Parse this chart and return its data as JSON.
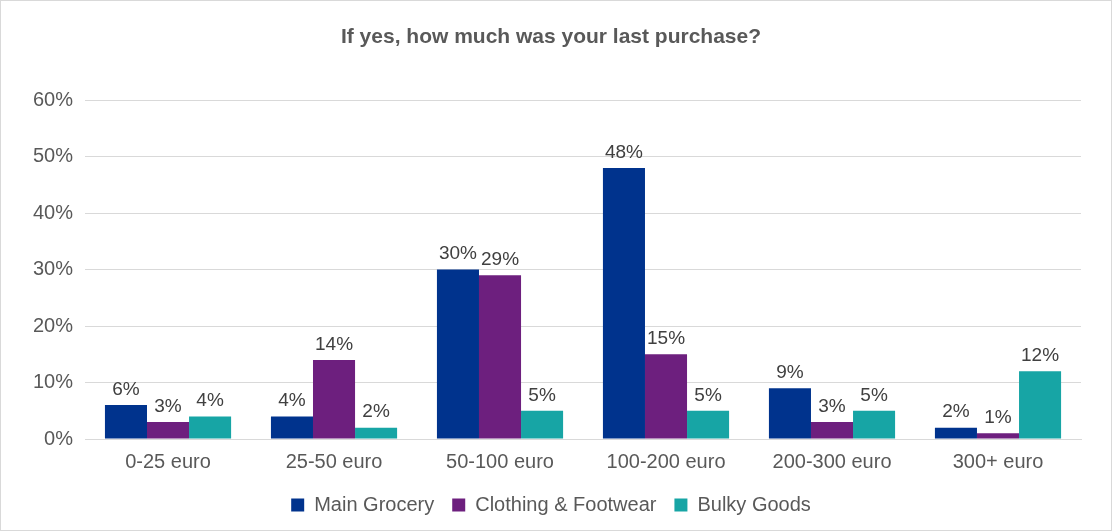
{
  "chart_data": {
    "type": "bar",
    "title": "If yes, how much was your last purchase?",
    "categories": [
      "0-25 euro",
      "25-50 euro",
      "50-100 euro",
      "100-200 euro",
      "200-300 euro",
      "300+ euro"
    ],
    "series": [
      {
        "name": "Main Grocery",
        "color": "#00338d",
        "values": [
          6,
          4,
          30,
          48,
          9,
          2
        ],
        "value_labels": [
          "6%",
          "4%",
          "30%",
          "48%",
          "9%",
          "2%"
        ]
      },
      {
        "name": "Clothing & Footwear",
        "color": "#6d1f7e",
        "values": [
          3,
          14,
          29,
          15,
          3,
          1
        ],
        "value_labels": [
          "3%",
          "14%",
          "29%",
          "15%",
          "3%",
          "1%"
        ]
      },
      {
        "name": "Bulky Goods",
        "color": "#17a5a5",
        "values": [
          4,
          2,
          5,
          5,
          5,
          12
        ],
        "value_labels": [
          "4%",
          "2%",
          "5%",
          "5%",
          "5%",
          "12%"
        ]
      }
    ],
    "ylim": [
      0,
      60
    ],
    "yticks": [
      {
        "value": 0,
        "label": "0%"
      },
      {
        "value": 10,
        "label": "10%"
      },
      {
        "value": 20,
        "label": "20%"
      },
      {
        "value": 30,
        "label": "30%"
      },
      {
        "value": 40,
        "label": "40%"
      },
      {
        "value": 50,
        "label": "50%"
      },
      {
        "value": 60,
        "label": "60%"
      }
    ],
    "grid": "y",
    "legend": "bottom"
  }
}
